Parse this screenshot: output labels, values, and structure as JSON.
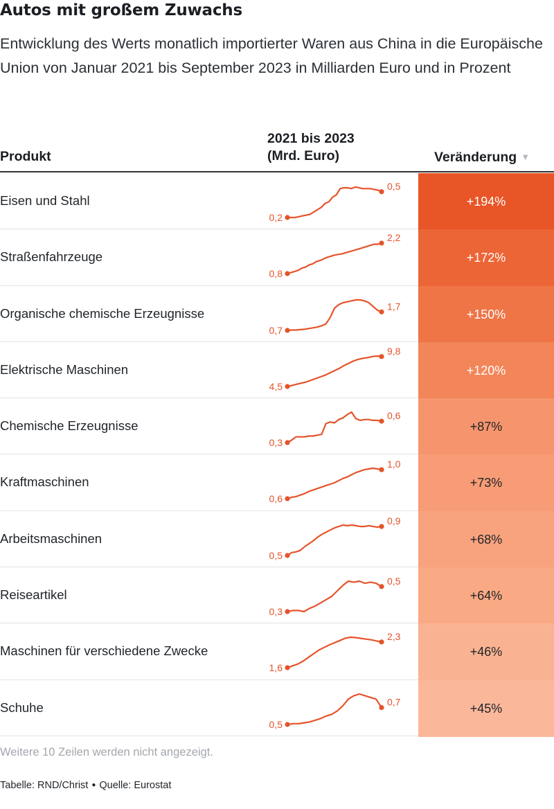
{
  "title": "Autos mit großem Zuwachs",
  "subtitle": "Entwicklung des Werts monatlich importierter Waren aus China in die Europäische Union von Januar 2021 bis September 2023 in Milliarden Euro und in Prozent",
  "header": {
    "product": "Produkt",
    "spark_line1": "2021 bis 2023",
    "spark_line2": "(Mrd. Euro)",
    "change": "Veränderung",
    "sort_icon": "sort-down-triangle"
  },
  "colors": {
    "accent": "#e5532a",
    "scale": [
      "#e85526",
      "#ec6536",
      "#ef7446",
      "#f28659",
      "#f6956d",
      "#f79c76",
      "#f8a37e",
      "#f9a983",
      "#fab392",
      "#fbb79a"
    ]
  },
  "footer": {
    "note": "Weitere 10 Zeilen werden nicht angezeigt.",
    "table_credit": "Tabelle: RND/Christ",
    "source": "Quelle: Eurostat"
  },
  "chart_data": {
    "type": "table",
    "x_range": [
      "Januar 2021",
      "September 2023"
    ],
    "columns": [
      "Produkt",
      "2021 bis 2023 (Mrd. Euro)",
      "Veränderung"
    ],
    "rows": [
      {
        "product": "Eisen und Stahl",
        "start_label": "0,2",
        "end_label": "0,5",
        "change": "+194%",
        "values": [
          0.17,
          0.17,
          0.17,
          0.18,
          0.19,
          0.2,
          0.21,
          0.24,
          0.27,
          0.3,
          0.35,
          0.37,
          0.43,
          0.46,
          0.54,
          0.55,
          0.55,
          0.54,
          0.56,
          0.55,
          0.54,
          0.54,
          0.54,
          0.53,
          0.52,
          0.5
        ]
      },
      {
        "product": "Straßenfahrzeuge",
        "start_label": "0,8",
        "end_label": "2,2",
        "change": "+172%",
        "values": [
          0.8,
          0.85,
          0.9,
          0.95,
          1.05,
          1.1,
          1.2,
          1.25,
          1.35,
          1.4,
          1.47,
          1.55,
          1.6,
          1.65,
          1.68,
          1.7,
          1.75,
          1.8,
          1.85,
          1.9,
          1.95,
          2.0,
          2.05,
          2.1,
          2.15,
          2.15,
          2.2
        ]
      },
      {
        "product": "Organische chemische Erzeugnisse",
        "start_label": "0,7",
        "end_label": "1,7",
        "change": "+150%",
        "values": [
          0.7,
          0.72,
          0.72,
          0.74,
          0.76,
          0.8,
          0.84,
          0.88,
          0.95,
          1.05,
          1.4,
          1.9,
          2.1,
          2.2,
          2.25,
          2.3,
          2.35,
          2.35,
          2.3,
          2.2,
          2.0,
          1.8,
          1.7
        ]
      },
      {
        "product": "Elektrische Maschinen",
        "start_label": "4,5",
        "end_label": "9,8",
        "change": "+120%",
        "values": [
          4.5,
          4.7,
          4.9,
          5.1,
          5.3,
          5.6,
          5.9,
          6.2,
          6.5,
          6.9,
          7.3,
          7.7,
          8.2,
          8.6,
          9.0,
          9.3,
          9.5,
          9.6,
          9.8,
          9.9,
          9.8
        ]
      },
      {
        "product": "Chemische Erzeugnisse",
        "start_label": "0,3",
        "end_label": "0,6",
        "change": "+87%",
        "values": [
          0.32,
          0.35,
          0.39,
          0.39,
          0.39,
          0.4,
          0.4,
          0.41,
          0.42,
          0.55,
          0.57,
          0.56,
          0.6,
          0.62,
          0.66,
          0.69,
          0.61,
          0.59,
          0.6,
          0.6,
          0.59,
          0.59,
          0.58
        ]
      },
      {
        "product": "Kraftmaschinen",
        "start_label": "0,6",
        "end_label": "1,0",
        "change": "+73%",
        "values": [
          0.6,
          0.62,
          0.63,
          0.65,
          0.67,
          0.7,
          0.72,
          0.74,
          0.76,
          0.78,
          0.8,
          0.82,
          0.85,
          0.88,
          0.9,
          0.93,
          0.96,
          0.98,
          1.0,
          1.01,
          1.02,
          1.01,
          1.0
        ]
      },
      {
        "product": "Arbeitsmaschinen",
        "start_label": "0,5",
        "end_label": "0,9",
        "change": "+68%",
        "values": [
          0.5,
          0.54,
          0.55,
          0.57,
          0.62,
          0.66,
          0.7,
          0.75,
          0.79,
          0.82,
          0.85,
          0.88,
          0.9,
          0.92,
          0.91,
          0.92,
          0.91,
          0.9,
          0.9,
          0.91,
          0.9,
          0.89,
          0.9
        ]
      },
      {
        "product": "Reiseartikel",
        "start_label": "0,3",
        "end_label": "0,5",
        "change": "+64%",
        "values": [
          0.3,
          0.31,
          0.31,
          0.3,
          0.33,
          0.35,
          0.38,
          0.41,
          0.44,
          0.49,
          0.54,
          0.58,
          0.57,
          0.58,
          0.56,
          0.57,
          0.56,
          0.53
        ]
      },
      {
        "product": "Maschinen für verschiedene Zwecke",
        "start_label": "1,6",
        "end_label": "2,3",
        "change": "+46%",
        "values": [
          1.6,
          1.65,
          1.7,
          1.78,
          1.88,
          1.98,
          2.08,
          2.15,
          2.22,
          2.28,
          2.34,
          2.4,
          2.43,
          2.42,
          2.4,
          2.38,
          2.36,
          2.33,
          2.3
        ]
      },
      {
        "product": "Schuhe",
        "start_label": "0,5",
        "end_label": "0,7",
        "change": "+45%",
        "values": [
          0.5,
          0.51,
          0.51,
          0.52,
          0.53,
          0.55,
          0.57,
          0.6,
          0.62,
          0.66,
          0.72,
          0.8,
          0.84,
          0.86,
          0.84,
          0.82,
          0.8,
          0.7
        ]
      }
    ]
  }
}
